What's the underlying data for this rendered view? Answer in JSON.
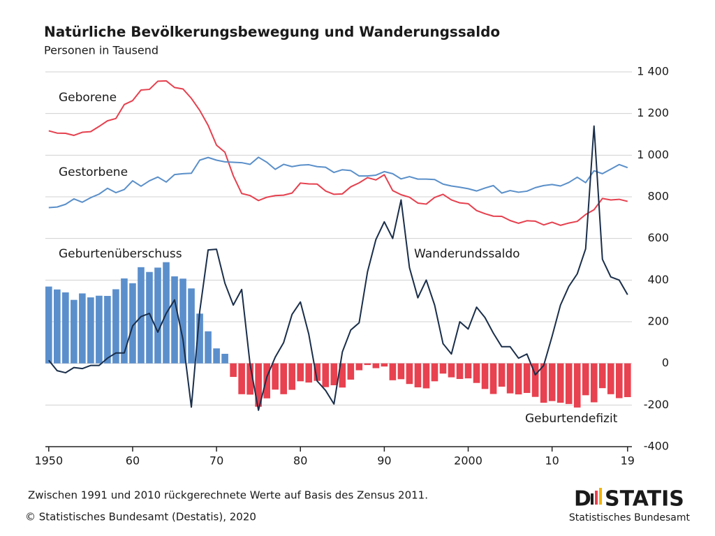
{
  "chart_data": {
    "type": "combo",
    "title": "Natürliche Bevölkerungsbewegung und Wanderungssaldo",
    "subtitle": "Personen in Tausend",
    "note": "Zwischen 1991 und 2010 rückgerechnete Werte auf Basis des Zensus 2011.",
    "copyright": "© Statistisches Bundesamt (Destatis), 2020",
    "logo": {
      "left": "D",
      "right": "STATIS",
      "caption": "Statistisches Bundesamt"
    },
    "x": [
      1950,
      1951,
      1952,
      1953,
      1954,
      1955,
      1956,
      1957,
      1958,
      1959,
      1960,
      1961,
      1962,
      1963,
      1964,
      1965,
      1966,
      1967,
      1968,
      1969,
      1970,
      1971,
      1972,
      1973,
      1974,
      1975,
      1976,
      1977,
      1978,
      1979,
      1980,
      1981,
      1982,
      1983,
      1984,
      1985,
      1986,
      1987,
      1988,
      1989,
      1990,
      1991,
      1992,
      1993,
      1994,
      1995,
      1996,
      1997,
      1998,
      1999,
      2000,
      2001,
      2002,
      2003,
      2004,
      2005,
      2006,
      2007,
      2008,
      2009,
      2010,
      2011,
      2012,
      2013,
      2014,
      2015,
      2016,
      2017,
      2018,
      2019
    ],
    "xlim": [
      1949.6,
      2019.1
    ],
    "xticks": [
      1950,
      {
        "value": 1960,
        "label": "60"
      },
      {
        "value": 1970,
        "label": "70"
      },
      {
        "value": 1980,
        "label": "80"
      },
      {
        "value": 1990,
        "label": "90"
      },
      2000,
      {
        "value": 2010,
        "label": "10"
      },
      {
        "value": 2019,
        "label": "19"
      }
    ],
    "ylim": [
      -400,
      1400
    ],
    "yticks": [
      -400,
      -200,
      0,
      200,
      400,
      600,
      800,
      {
        "value": 1000,
        "label": "1 000"
      },
      {
        "value": 1200,
        "label": "1 200"
      },
      {
        "value": 1400,
        "label": "1 400"
      }
    ],
    "grid": true,
    "series": [
      {
        "name": "Geburtenüberschuss",
        "type": "bar",
        "color": "#5b8fcc",
        "values": [
          369,
          355,
          341,
          305,
          336,
          317,
          325,
          324,
          356,
          408,
          385,
          462,
          439,
          460,
          486,
          418,
          407,
          360,
          239,
          154,
          72,
          46,
          null,
          null,
          null,
          null,
          null,
          null,
          null,
          null,
          null,
          null,
          null,
          null,
          null,
          null,
          null,
          null,
          null,
          null,
          null,
          null,
          null,
          null,
          null,
          null,
          null,
          null,
          null,
          null,
          null,
          null,
          null,
          null,
          null,
          null,
          null,
          null,
          null,
          null,
          null,
          null,
          null,
          null,
          null,
          null,
          null,
          null,
          null,
          null
        ]
      },
      {
        "name": "Geburtendefizit",
        "type": "bar",
        "color": "#e8414f",
        "values": [
          null,
          null,
          null,
          null,
          null,
          null,
          null,
          null,
          null,
          null,
          null,
          null,
          null,
          null,
          null,
          null,
          null,
          null,
          null,
          null,
          null,
          null,
          -65,
          -148,
          -150,
          -208,
          -168,
          -126,
          -148,
          -127,
          -86,
          -92,
          -84,
          -114,
          -105,
          -116,
          -78,
          -33,
          -8,
          -23,
          -15,
          -81,
          -76,
          -99,
          -115,
          -120,
          -86,
          -49,
          -67,
          -75,
          -72,
          -94,
          -123,
          -147,
          -112,
          -144,
          -149,
          -142,
          -161,
          -189,
          -181,
          -189,
          -195,
          -212,
          -153,
          -187,
          -119,
          -148,
          -167,
          -162
        ]
      },
      {
        "name": "Geborene",
        "type": "line",
        "color": "#e5404e",
        "values": [
          1117,
          1106,
          1105,
          1095,
          1110,
          1113,
          1138,
          1165,
          1176,
          1243,
          1262,
          1313,
          1316,
          1355,
          1357,
          1325,
          1318,
          1273,
          1215,
          1143,
          1048,
          1014,
          901,
          816,
          806,
          782,
          798,
          806,
          808,
          818,
          866,
          862,
          861,
          828,
          812,
          814,
          848,
          867,
          892,
          881,
          906,
          830,
          810,
          798,
          770,
          765,
          797,
          812,
          785,
          771,
          767,
          734,
          719,
          707,
          706,
          686,
          673,
          685,
          683,
          665,
          678,
          663,
          674,
          682,
          715,
          738,
          792,
          785,
          788,
          778
        ]
      },
      {
        "name": "Gestorbene",
        "type": "line",
        "color": "#5a8fc9",
        "values": [
          748,
          751,
          764,
          790,
          774,
          796,
          813,
          841,
          820,
          835,
          877,
          851,
          877,
          895,
          871,
          907,
          911,
          913,
          976,
          989,
          976,
          968,
          966,
          964,
          956,
          990,
          966,
          932,
          956,
          945,
          952,
          954,
          945,
          942,
          917,
          930,
          926,
          900,
          900,
          904,
          921,
          911,
          886,
          897,
          885,
          885,
          883,
          861,
          852,
          846,
          839,
          828,
          842,
          854,
          818,
          830,
          822,
          827,
          844,
          854,
          859,
          852,
          869,
          894,
          868,
          925,
          911,
          933,
          955,
          940
        ]
      },
      {
        "name": "Wanderundssaldo",
        "type": "line",
        "color": "#1a2e4a",
        "values": [
          15,
          -35,
          -45,
          -20,
          -25,
          -10,
          -10,
          25,
          50,
          50,
          180,
          225,
          240,
          150,
          240,
          305,
          115,
          -210,
          250,
          545,
          548,
          385,
          280,
          355,
          -5,
          -225,
          -65,
          30,
          100,
          235,
          295,
          140,
          -85,
          -130,
          -195,
          55,
          160,
          195,
          440,
          595,
          680,
          600,
          785,
          460,
          315,
          400,
          280,
          95,
          45,
          200,
          165,
          270,
          220,
          145,
          80,
          80,
          25,
          45,
          -55,
          -10,
          130,
          280,
          370,
          430,
          550,
          1140,
          500,
          415,
          400,
          330
        ]
      }
    ]
  }
}
